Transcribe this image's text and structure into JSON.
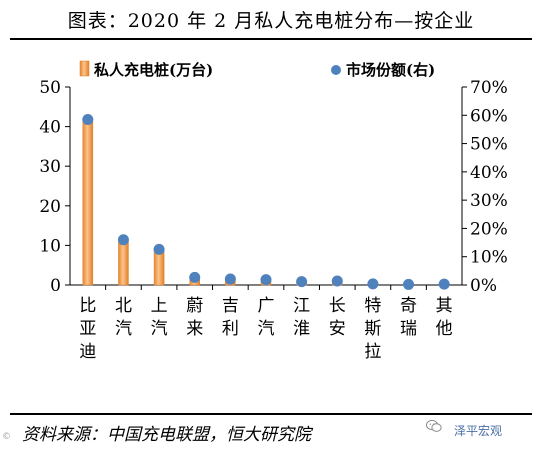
{
  "title": "图表：2020 年 2 月私人充电桩分布—按企业",
  "source": "资料来源：中国充电联盟，恒大研究院",
  "watermark": "泽平宏观",
  "corner_mark": "©",
  "colors": {
    "bar": "#f5a65b",
    "bar_edge": "#e07f26",
    "dot": "#4f81bd",
    "axis": "#000000"
  },
  "icons": {
    "legend_bar": "orange-bar-swatch",
    "legend_dot": "blue-dot-marker",
    "watermark": "wechat-icon"
  },
  "chart_data": {
    "type": "bar",
    "categories": [
      "比亚迪",
      "北汽",
      "上汽",
      "蔚来",
      "吉利",
      "广汽",
      "江淮",
      "长安",
      "特斯拉",
      "奇瑞",
      "其他"
    ],
    "series": [
      {
        "name": "私人充电桩(万台)",
        "type": "bar",
        "axis": "left",
        "values": [
          42,
          11,
          9,
          1.8,
          1.4,
          1.1,
          0.8,
          0.8,
          0.3,
          0.2,
          0.3
        ]
      },
      {
        "name": "市场份额(右)",
        "type": "scatter",
        "axis": "right",
        "values": [
          0.585,
          0.16,
          0.126,
          0.027,
          0.021,
          0.019,
          0.012,
          0.014,
          0.004,
          0.002,
          0.003
        ]
      }
    ],
    "y_left": {
      "lim": [
        0,
        50
      ],
      "ticks": [
        "0",
        "10",
        "20",
        "30",
        "40",
        "50"
      ],
      "values": [
        0,
        10,
        20,
        30,
        40,
        50
      ]
    },
    "y_right": {
      "lim": [
        0,
        0.7
      ],
      "ticks": [
        "0%",
        "10%",
        "20%",
        "30%",
        "40%",
        "50%",
        "60%",
        "70%"
      ],
      "values": [
        0,
        0.1,
        0.2,
        0.3,
        0.4,
        0.5,
        0.6,
        0.7
      ]
    },
    "xlabel": "",
    "ylabel": "",
    "grid": false,
    "legend_position": "top"
  }
}
